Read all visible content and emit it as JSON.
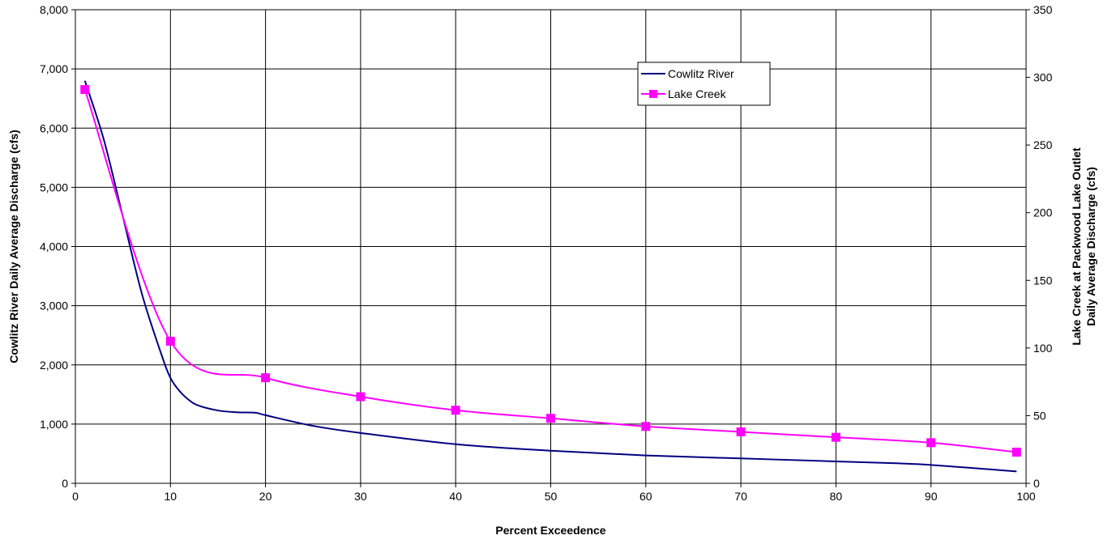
{
  "chart_data": {
    "type": "line",
    "title": "",
    "xlabel": "Percent Exceedence",
    "ylabel_left": "Cowlitz River Daily Average Discharge (cfs)",
    "ylabel_right_lines": [
      "Lake Creek at Packwood Lake Outlet",
      "Daily Average Discharge (cfs)"
    ],
    "xlim": [
      0,
      100
    ],
    "ylim_left": [
      0,
      8000
    ],
    "ylim_right": [
      0,
      350
    ],
    "x_ticks": [
      "0",
      "10",
      "20",
      "30",
      "40",
      "50",
      "60",
      "70",
      "80",
      "90",
      "100"
    ],
    "y_left_ticks": [
      "0",
      "1,000",
      "2,000",
      "3,000",
      "4,000",
      "5,000",
      "6,000",
      "7,000",
      "8,000"
    ],
    "y_right_ticks": [
      "0",
      "50",
      "100",
      "150",
      "200",
      "250",
      "300",
      "350"
    ],
    "grid": true,
    "legend_position": "top-right",
    "series": [
      {
        "name": "Cowlitz River",
        "axis": "left",
        "color": "#000080",
        "marker": "none",
        "x": [
          1,
          3,
          5,
          7,
          9,
          10,
          11,
          12,
          13,
          15,
          17,
          19,
          20,
          25,
          30,
          40,
          50,
          60,
          70,
          80,
          86,
          90,
          95,
          99
        ],
        "y": [
          6800,
          5800,
          4500,
          3200,
          2200,
          1780,
          1550,
          1400,
          1310,
          1230,
          1200,
          1190,
          1150,
          970,
          850,
          660,
          550,
          470,
          420,
          370,
          340,
          310,
          250,
          200
        ]
      },
      {
        "name": "Lake Creek",
        "axis": "right",
        "color": "#ff00ff",
        "marker": "square",
        "x": [
          1,
          10,
          20,
          30,
          40,
          50,
          60,
          70,
          80,
          90,
          99
        ],
        "y": [
          291,
          105,
          78,
          64,
          54,
          48,
          42,
          38,
          34,
          30,
          23
        ]
      }
    ]
  }
}
